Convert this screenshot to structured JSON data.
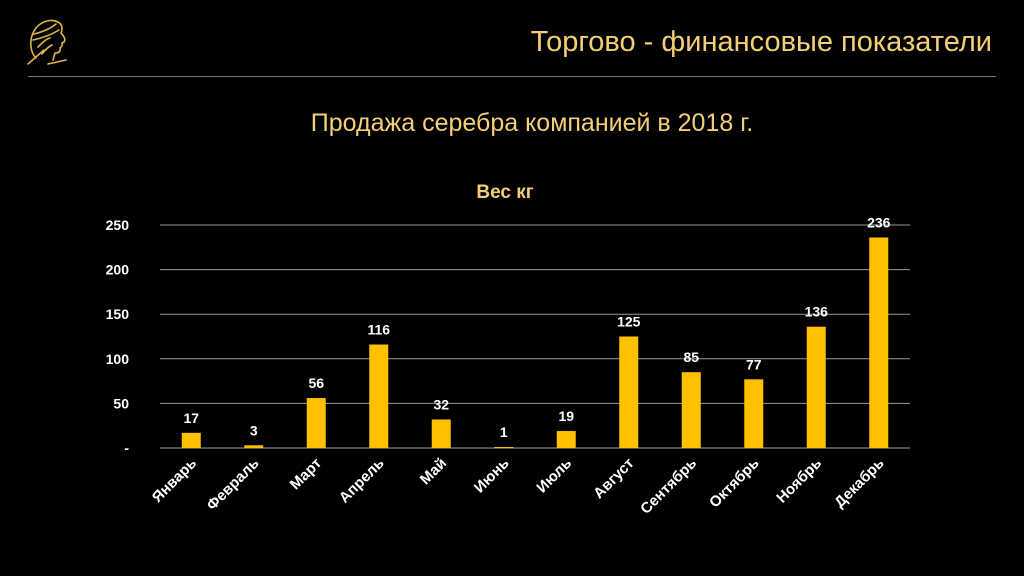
{
  "header": {
    "title": "Торгово - финансовые показатели",
    "logo_icon": "classical-profile-head-icon"
  },
  "subtitle": "Продажа серебра компанией в 2018 г.",
  "chart_data": {
    "type": "bar",
    "title": "Вес кг",
    "xlabel": "",
    "ylabel": "",
    "categories": [
      "Январь",
      "Февраль",
      "Март",
      "Апрель",
      "Май",
      "Июнь",
      "Июль",
      "Август",
      "Сентябрь",
      "Октябрь",
      "Ноябрь",
      "Декабрь"
    ],
    "series": [
      {
        "values": [
          17,
          3,
          56,
          116,
          32,
          1,
          19,
          125,
          85,
          77,
          136,
          236
        ]
      }
    ],
    "ylim": [
      0,
      250
    ],
    "yticks": [
      0,
      50,
      100,
      150,
      200,
      250
    ],
    "ytick_labels": [
      "-",
      "50",
      "100",
      "150",
      "200",
      "250"
    ],
    "grid": true,
    "data_labels": true,
    "legend": "none"
  },
  "colors": {
    "background": "#000000",
    "bar": "#ffc000",
    "accent_text": "#f3cf76",
    "axis_text": "#ffffff",
    "gridline": "#9a9a9a"
  }
}
